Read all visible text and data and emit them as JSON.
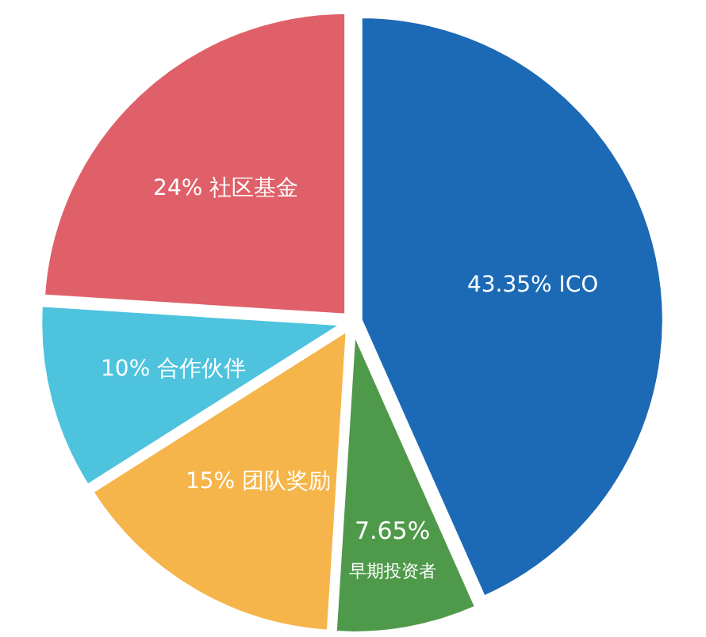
{
  "chart_data": {
    "type": "pie",
    "categories": [
      "ICO",
      "早期投资者",
      "团队奖励",
      "合作伙伴",
      "社区基金"
    ],
    "values": [
      43.35,
      7.65,
      15,
      10,
      24
    ],
    "colors": [
      "#1c6ab5",
      "#4f9a4a",
      "#f5b54a",
      "#4ec3de",
      "#e0606a"
    ],
    "value_labels": [
      "43.35%",
      "7.65%",
      "15%",
      "10%",
      "24%"
    ]
  }
}
